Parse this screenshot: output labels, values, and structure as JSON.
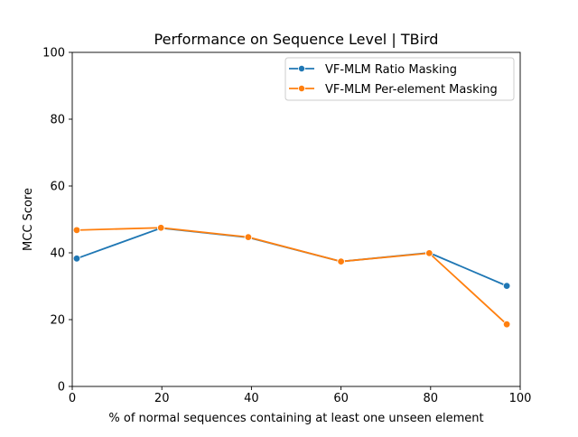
{
  "chart_data": {
    "type": "line",
    "title": "Performance on Sequence Level | TBird",
    "xlabel": "% of normal sequences containing at least one unseen element",
    "ylabel": "MCC Score",
    "xlim": [
      0,
      100
    ],
    "ylim": [
      0,
      100
    ],
    "xticks": [
      "0",
      "20",
      "40",
      "60",
      "80",
      "100"
    ],
    "yticks": [
      "0",
      "20",
      "40",
      "60",
      "80",
      "100"
    ],
    "grid": false,
    "legend_position": "top-right",
    "series": [
      {
        "name": "VF-MLM Ratio Masking",
        "color": "#1f77b4",
        "x": [
          1,
          19.8,
          39.3,
          60,
          79.7,
          97
        ],
        "y": [
          38.3,
          47.4,
          44.6,
          37.4,
          40.0,
          30.1
        ]
      },
      {
        "name": "VF-MLM Per-element Masking",
        "color": "#ff7f0e",
        "x": [
          1,
          19.8,
          39.3,
          60,
          79.7,
          97
        ],
        "y": [
          46.8,
          47.5,
          44.7,
          37.4,
          39.9,
          18.6
        ]
      }
    ]
  }
}
